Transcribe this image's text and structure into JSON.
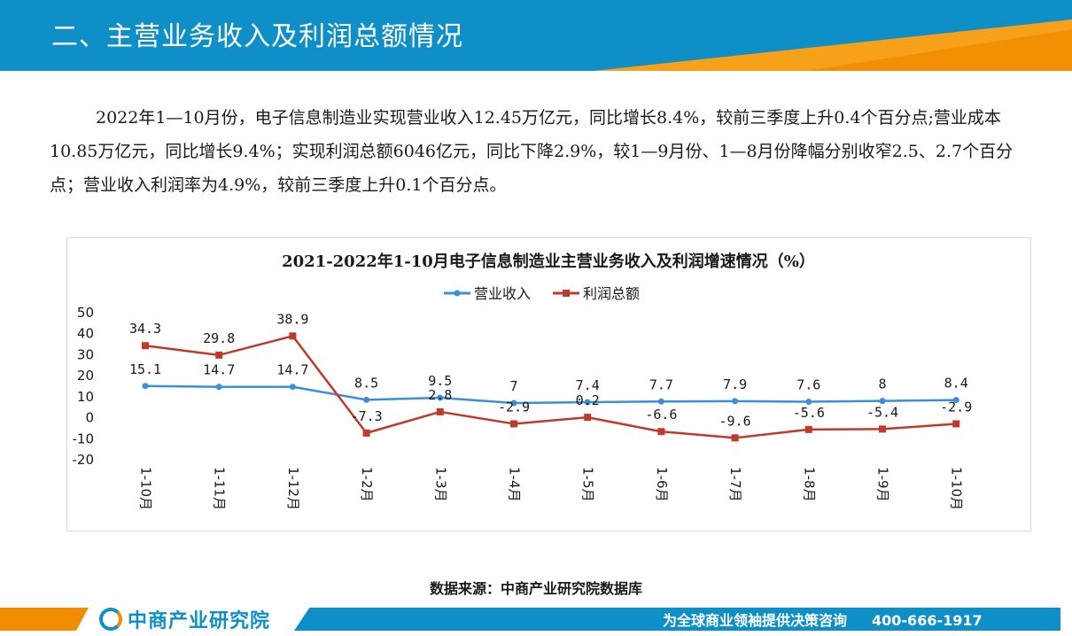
{
  "header": {
    "title": "二、主营业务收入及利润总额情况"
  },
  "paragraph": "2022年1—10月份，电子信息制造业实现营业收入12.45万亿元，同比增长8.4%，较前三季度上升0.4个百分点;营业成本10.85万亿元，同比增长9.4%；实现利润总额6046亿元，同比下降2.9%，较1—9月份、1—8月份降幅分别收窄2.5、2.7个百分点；营业收入利润率为4.9%，较前三季度上升0.1个百分点。",
  "chart_data": {
    "type": "line",
    "title": "2021-2022年1-10月电子信息制造业主营业务收入及利润增速情况（%）",
    "categories": [
      "1-10月",
      "1-11月",
      "1-12月",
      "1-2月",
      "1-3月",
      "1-4月",
      "1-5月",
      "1-6月",
      "1-7月",
      "1-8月",
      "1-9月",
      "1-10月"
    ],
    "series": [
      {
        "name": "营业收入",
        "color": "#3b8fd9",
        "values": [
          15.1,
          14.7,
          14.7,
          8.5,
          9.5,
          7,
          7.4,
          7.7,
          7.9,
          7.6,
          8,
          8.4
        ]
      },
      {
        "name": "利润总额",
        "color": "#c0392b",
        "values": [
          34.3,
          29.8,
          38.9,
          -7.3,
          2.8,
          -2.9,
          0.2,
          -6.6,
          -9.6,
          -5.6,
          -5.4,
          -2.9
        ]
      }
    ],
    "ylim": [
      -20,
      50
    ],
    "yticks": [
      -20,
      -10,
      0,
      10,
      20,
      30,
      40,
      50
    ],
    "legend": "top-center",
    "grid": false
  },
  "source": "数据来源：中商产业研究院数据库",
  "footer": {
    "logo": "中商产业研究院",
    "slogan": "为全球商业领袖提供决策咨询",
    "phone": "400-666-1917"
  }
}
